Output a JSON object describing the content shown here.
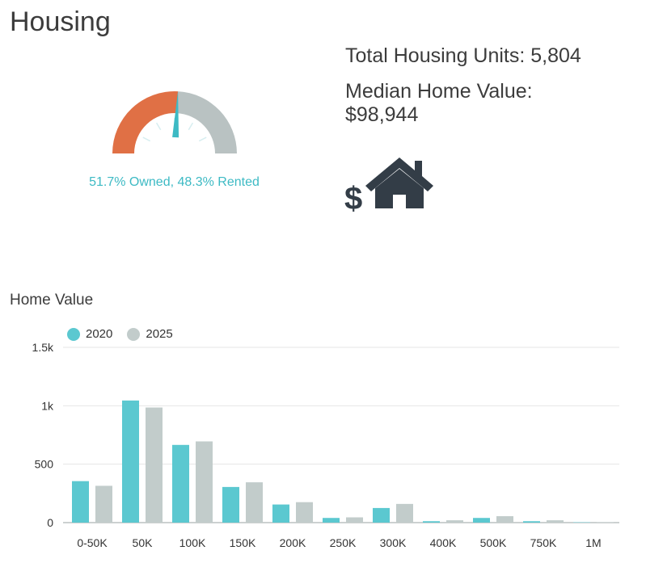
{
  "page": {
    "title": "Housing"
  },
  "stats": {
    "total_units_label": "Total Housing Units: 5,804",
    "median_label": "Median Home Value:",
    "median_value": "$98,944"
  },
  "gauge": {
    "owned_pct": 51.7,
    "rented_pct": 48.3,
    "caption": "51.7% Owned, 48.3% Rented",
    "owned_color": "#e07045",
    "rented_color": "#b9c2c2",
    "needle_color": "#3dbac4"
  },
  "icons": {
    "house": "house-dollar-icon"
  },
  "chart_data": {
    "type": "bar",
    "title": "Home Value",
    "categories": [
      "0-50K",
      "50K",
      "100K",
      "150K",
      "200K",
      "250K",
      "300K",
      "400K",
      "500K",
      "750K",
      "1M"
    ],
    "series": [
      {
        "name": "2020",
        "color": "#5bc8d0",
        "values": [
          355,
          1045,
          665,
          305,
          155,
          40,
          125,
          12,
          40,
          12,
          3
        ]
      },
      {
        "name": "2025",
        "color": "#c2cccb",
        "values": [
          315,
          985,
          695,
          345,
          175,
          45,
          160,
          20,
          55,
          20,
          5
        ]
      }
    ],
    "ylim": [
      0,
      1500
    ],
    "yticks": [
      0,
      500,
      1000,
      1500
    ],
    "ytick_labels": [
      "0",
      "500",
      "1k",
      "1.5k"
    ],
    "grid": true,
    "legend": "top-left"
  }
}
